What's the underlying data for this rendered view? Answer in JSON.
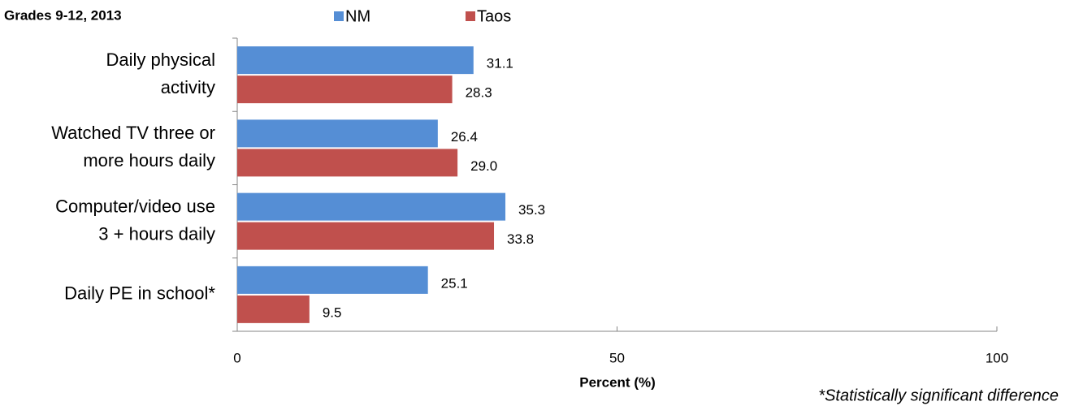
{
  "chart_data": {
    "type": "hbar",
    "title": "Grades 9-12, 2013",
    "categories": [
      [
        "Daily physical",
        "activity"
      ],
      [
        "Watched TV three or",
        "more hours daily"
      ],
      [
        "Computer/video use",
        "3 + hours daily"
      ],
      [
        "Daily PE in school*"
      ]
    ],
    "series": [
      {
        "name": "NM",
        "color": "#558ed5",
        "values": [
          31.1,
          26.4,
          35.3,
          25.1
        ],
        "value_labels": [
          "31.1",
          "26.4",
          "35.3",
          "25.1"
        ]
      },
      {
        "name": "Taos",
        "color": "#c0504d",
        "values": [
          28.3,
          29.0,
          33.8,
          9.5
        ],
        "value_labels": [
          "28.3",
          "29.0",
          "33.8",
          "9.5"
        ]
      }
    ],
    "xlim": [
      0,
      100
    ],
    "xticks": [
      0,
      50,
      100
    ],
    "xlabel": "Percent (%)",
    "annotation": "*Statistically significant difference",
    "legend": "top"
  }
}
